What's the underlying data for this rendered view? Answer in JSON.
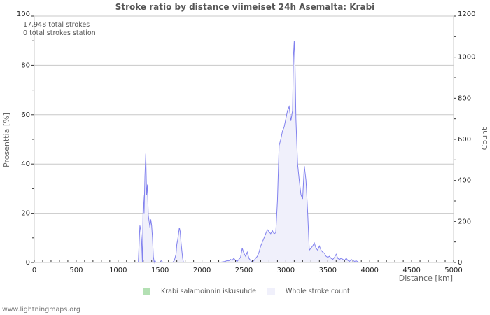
{
  "title": "Stroke ratio by distance viimeiset 24h Asemalta: Krabi",
  "annotations": {
    "line1": "17,948 total strokes",
    "line2": "0 total strokes station"
  },
  "axes": {
    "x_title": "Distance   [km]",
    "y_left_title": "Prosenttia   [%]",
    "y_right_title": "Count",
    "x_ticks": [
      "0",
      "500",
      "1000",
      "1500",
      "2000",
      "2500",
      "3000",
      "3500",
      "4000",
      "4500",
      "5000"
    ],
    "y_left_ticks": [
      "0",
      "20",
      "40",
      "60",
      "80",
      "100"
    ],
    "y_right_ticks": [
      "0",
      "200",
      "400",
      "600",
      "800",
      "1000",
      "1200"
    ]
  },
  "legend": {
    "item1": "Krabi salamoinnin iskusuhde",
    "item2": "Whole stroke count"
  },
  "footer": "www.lightningmaps.org",
  "colors": {
    "ratio": "#b3e0b3",
    "count_fill": "#f0f0fb",
    "count_line": "#8080ee",
    "grid": "#c8c8c8"
  },
  "chart_data": {
    "type": "area",
    "title": "Stroke ratio by distance viimeiset 24h Asemalta: Krabi",
    "xlabel": "Distance [km]",
    "ylabel": "Prosenttia [%]",
    "ylabel_right": "Count",
    "xlim": [
      0,
      5000
    ],
    "ylim": [
      0,
      100
    ],
    "ylim_right": [
      0,
      1200
    ],
    "grid": true,
    "legend_position": "bottom",
    "series": [
      {
        "name": "Krabi salamoinnin iskusuhde",
        "axis": "left",
        "x": [],
        "values": []
      },
      {
        "name": "Whole stroke count",
        "axis": "right",
        "x": [
          1240,
          1260,
          1270,
          1280,
          1290,
          1300,
          1310,
          1320,
          1330,
          1340,
          1350,
          1360,
          1370,
          1380,
          1390,
          1400,
          1410,
          1420,
          1430,
          1440,
          1450,
          1500,
          1520,
          1530,
          1650,
          1670,
          1690,
          1700,
          1710,
          1720,
          1730,
          1740,
          1750,
          1760,
          1770,
          1780,
          1790,
          1800,
          2200,
          2280,
          2300,
          2320,
          2340,
          2360,
          2380,
          2400,
          2420,
          2440,
          2460,
          2480,
          2500,
          2520,
          2540,
          2560,
          2580,
          2600,
          2620,
          2640,
          2660,
          2680,
          2700,
          2720,
          2740,
          2760,
          2780,
          2800,
          2820,
          2840,
          2860,
          2880,
          2900,
          2920,
          2940,
          2960,
          2980,
          3000,
          3020,
          3040,
          3060,
          3080,
          3090,
          3100,
          3110,
          3120,
          3140,
          3160,
          3180,
          3200,
          3220,
          3240,
          3260,
          3280,
          3300,
          3320,
          3340,
          3360,
          3380,
          3400,
          3420,
          3440,
          3460,
          3480,
          3500,
          3520,
          3540,
          3560,
          3580,
          3600,
          3620,
          3640,
          3660,
          3680,
          3700,
          3720,
          3740,
          3760,
          3780,
          3800,
          3820,
          3840,
          3860,
          3880,
          3900,
          3920,
          3940,
          3960,
          3980,
          4000,
          4050
        ],
        "values": [
          0,
          180,
          160,
          110,
          0,
          330,
          240,
          420,
          530,
          330,
          380,
          230,
          200,
          170,
          210,
          180,
          120,
          30,
          0,
          10,
          0,
          0,
          10,
          0,
          0,
          10,
          40,
          90,
          110,
          140,
          170,
          150,
          100,
          60,
          20,
          0,
          0,
          0,
          0,
          5,
          10,
          8,
          15,
          10,
          20,
          10,
          5,
          15,
          25,
          70,
          45,
          30,
          50,
          20,
          10,
          0,
          10,
          20,
          30,
          50,
          80,
          100,
          120,
          140,
          160,
          150,
          140,
          155,
          140,
          145,
          300,
          570,
          600,
          640,
          660,
          700,
          740,
          760,
          690,
          740,
          1000,
          1080,
          950,
          700,
          480,
          400,
          330,
          310,
          470,
          400,
          250,
          60,
          70,
          80,
          95,
          70,
          60,
          80,
          60,
          50,
          45,
          30,
          25,
          30,
          20,
          15,
          25,
          40,
          20,
          15,
          20,
          15,
          10,
          20,
          10,
          5,
          15,
          10,
          5,
          8,
          3,
          0,
          0,
          0,
          0,
          0,
          0,
          0,
          0
        ]
      }
    ]
  }
}
